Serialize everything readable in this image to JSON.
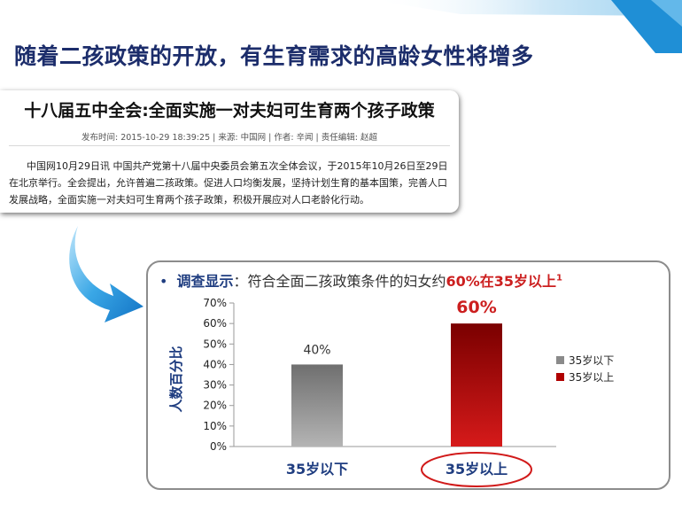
{
  "slide": {
    "title": "随着二孩政策的开放，有生育需求的高龄女性将增多"
  },
  "news": {
    "headline": "十八届五中全会:全面实施一对夫妇可生育两个孩子政策",
    "meta": "发布时间:  2015-10-29 18:39:25   |   来源:  中国网   |   作者:  辛闻   |   责任编辑:  赵超",
    "body": "中国网10月29日讯 中国共产党第十八届中央委员会第五次全体会议，于2015年10月26日至29日在北京举行。全会提出，允许普遍二孩政策。促进人口均衡发展，坚持计划生育的基本国策，完善人口发展战略，全面实施一对夫妇可生育两个孩子政策，积极开展应对人口老龄化行动。"
  },
  "finding": {
    "bullet": "•",
    "label": "调查显示",
    "text": "：符合全面二孩政策条件的妇女约",
    "highlight": "60%在35岁以上",
    "footnote": "1"
  },
  "colors": {
    "title": "#1c2d6b",
    "accent": "#1f9be0",
    "highlight": "#cc1f1f",
    "bar_gray": "#8a8a8a",
    "bar_red": "#b00000"
  },
  "chart_data": {
    "type": "bar",
    "categories": [
      "35岁以下",
      "35岁以上"
    ],
    "values": [
      40,
      60
    ],
    "value_labels": [
      "40%",
      "60%"
    ],
    "ylabel": "人数百分比",
    "ylim": [
      0,
      70
    ],
    "yticks": [
      "0%",
      "10%",
      "20%",
      "30%",
      "40%",
      "50%",
      "60%",
      "70%"
    ],
    "legend": [
      "35岁以下",
      "35岁以上"
    ],
    "legend_position": "right",
    "bar_colors": [
      "#8a8a8a",
      "#b00000"
    ],
    "highlighted_category": "35岁以上",
    "grid": false
  }
}
